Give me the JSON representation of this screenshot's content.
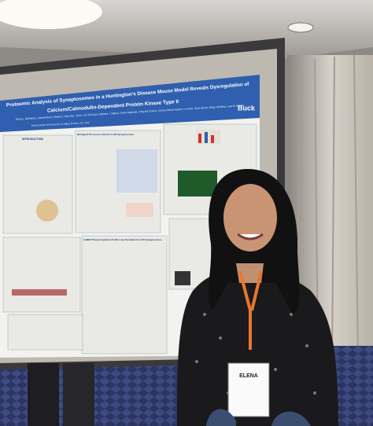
{
  "poster": {
    "title_lines": [
      "Proteomic Analysis of Synaptosomes in a Huntington's Disease Mouse Model Reveals Dysregulation of",
      "Calcium/Calmodulin-Dependent Protein Kinase Type II"
    ],
    "authors": "Elena I. Battistoni, Joanna Bons, Maria A. Sanchez, Tyne L.M. McHugh, Barbara J. Bailus, Swati Naphade, Ningzhe Zhang, Carlos Galicia Aguirre, Lei Wei, Ryan Quinn, Birgit Schilling, Lisa M. Ellerby",
    "affiliation": "Buck Institute for Research on Aging, Novato, CA, USA",
    "logo": "Buck",
    "sections": [
      "INTRODUCTION",
      "Biological Processes Altered in HD Synaptosomes",
      "CaMKII Phosphorylation Profiles are Normalized in HD Synaptosomes"
    ]
  },
  "badge": {
    "name": "ELENA"
  }
}
